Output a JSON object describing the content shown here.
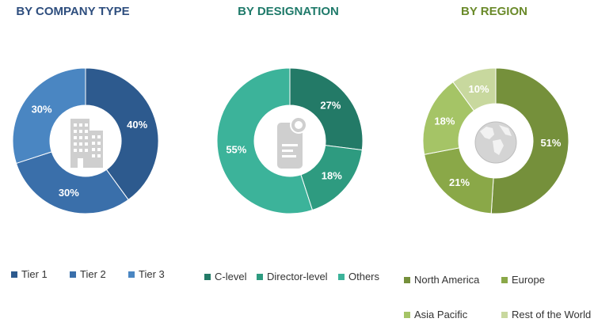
{
  "chart_data": [
    {
      "type": "pie",
      "title": "BY COMPANY TYPE",
      "title_color": "#2e4e7e",
      "categories": [
        "Tier 1",
        "Tier 2",
        "Tier 3"
      ],
      "values": [
        40,
        30,
        30
      ],
      "value_labels": [
        "40%",
        "30%",
        "30%"
      ],
      "colors": [
        "#2d5a8e",
        "#3a6faa",
        "#4a86c2"
      ],
      "center_icon": "building-icon",
      "legend_position": "bottom"
    },
    {
      "type": "pie",
      "title": "BY DESIGNATION",
      "title_color": "#1f7a6a",
      "categories": [
        "C-level",
        "Director-level",
        "Others"
      ],
      "values": [
        27,
        18,
        55
      ],
      "value_labels": [
        "27%",
        "18%",
        "55%"
      ],
      "colors": [
        "#237a67",
        "#2e9b80",
        "#3cb39a"
      ],
      "center_icon": "document-badge-icon",
      "legend_position": "bottom"
    },
    {
      "type": "pie",
      "title": "BY REGION",
      "title_color": "#6a8a2a",
      "categories": [
        "North America",
        "Europe",
        "Asia Pacific",
        "Rest of the World"
      ],
      "values": [
        51,
        21,
        18,
        10
      ],
      "value_labels": [
        "51%",
        "21%",
        "18%",
        "10%"
      ],
      "colors": [
        "#75903b",
        "#8aa848",
        "#a5c466",
        "#c8d89e"
      ],
      "center_icon": "globe-icon",
      "legend_position": "bottom"
    }
  ]
}
